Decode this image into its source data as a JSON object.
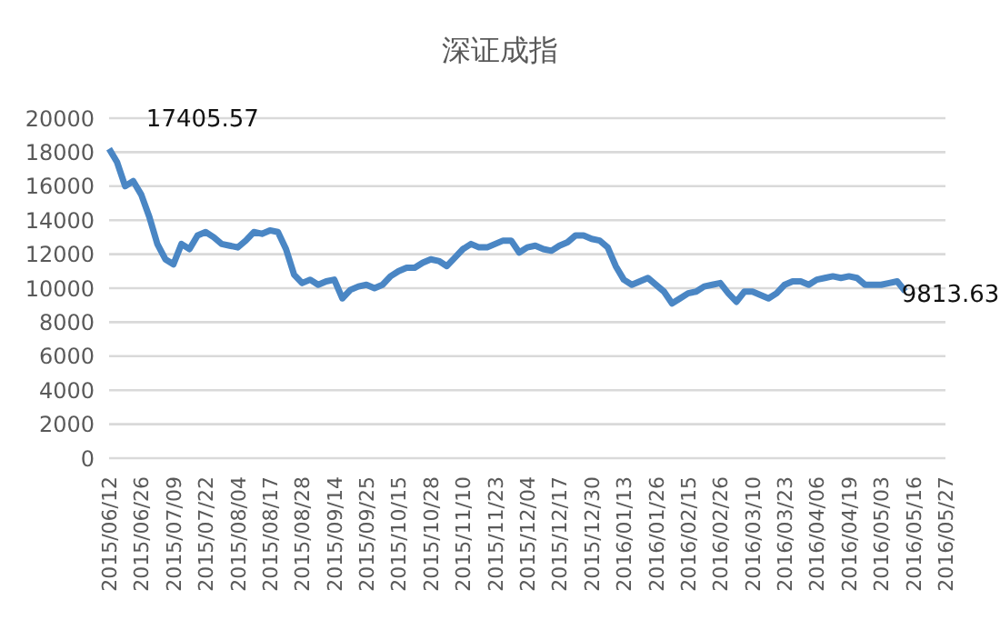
{
  "chart_data": {
    "type": "line",
    "title": "深证成指",
    "categories": [
      "2015/06/12",
      null,
      null,
      null,
      "2015/06/26",
      null,
      null,
      null,
      "2015/07/09",
      null,
      null,
      null,
      "2015/07/22",
      null,
      null,
      null,
      "2015/08/04",
      null,
      null,
      null,
      "2015/08/17",
      null,
      null,
      null,
      "2015/08/28",
      null,
      null,
      null,
      "2015/09/14",
      null,
      null,
      null,
      "2015/09/25",
      null,
      null,
      null,
      "2015/10/15",
      null,
      null,
      null,
      "2015/10/28",
      null,
      null,
      null,
      "2015/11/10",
      null,
      null,
      null,
      "2015/11/23",
      null,
      null,
      null,
      "2015/12/04",
      null,
      null,
      null,
      "2015/12/17",
      null,
      null,
      null,
      "2015/12/30",
      null,
      null,
      null,
      "2016/01/13",
      null,
      null,
      null,
      "2016/01/26",
      null,
      null,
      null,
      "2016/02/15",
      null,
      null,
      null,
      "2016/02/26",
      null,
      null,
      null,
      "2016/03/10",
      null,
      null,
      null,
      "2016/03/23",
      null,
      null,
      null,
      "2016/04/06",
      null,
      null,
      null,
      "2016/04/19",
      null,
      null,
      null,
      "2016/05/03",
      null,
      null,
      null,
      "2016/05/16",
      null,
      null,
      null,
      "2016/05/27"
    ],
    "series": [
      {
        "color": "#4a86c4",
        "values": [
          18200,
          17405.57,
          16000,
          16300,
          15500,
          14200,
          12600,
          11700,
          11400,
          12600,
          12300,
          13100,
          13300,
          13000,
          12600,
          12500,
          12400,
          12800,
          13300,
          13200,
          13400,
          13300,
          12300,
          10800,
          10300,
          10500,
          10200,
          10400,
          10500,
          9400,
          9900,
          10100,
          10200,
          10000,
          10200,
          10700,
          11000,
          11200,
          11200,
          11500,
          11700,
          11600,
          11300,
          11800,
          12300,
          12600,
          12400,
          12400,
          12600,
          12800,
          12800,
          12100,
          12400,
          12500,
          12300,
          12200,
          12500,
          12700,
          13100,
          13100,
          12900,
          12800,
          12400,
          11300,
          10500,
          10200,
          10400,
          10600,
          10200,
          9800,
          9100,
          9400,
          9700,
          9800,
          10100,
          10200,
          10300,
          9700,
          9200,
          9800,
          9800,
          9600,
          9400,
          9700,
          10200,
          10400,
          10400,
          10200,
          10500,
          10600,
          10700,
          10600,
          10700,
          10600,
          10200,
          10200,
          10200,
          10300,
          10400,
          9813.63,
          null,
          null,
          null,
          null,
          null
        ],
        "value_labels": [
          null,
          "17405.57",
          null,
          null,
          null,
          null,
          null,
          null,
          null,
          null,
          null,
          null,
          null,
          null,
          null,
          null,
          null,
          null,
          null,
          null,
          null,
          null,
          null,
          null,
          null,
          null,
          null,
          null,
          null,
          null,
          null,
          null,
          null,
          null,
          null,
          null,
          null,
          null,
          null,
          null,
          null,
          null,
          null,
          null,
          null,
          null,
          null,
          null,
          null,
          null,
          null,
          null,
          null,
          null,
          null,
          null,
          null,
          null,
          null,
          null,
          null,
          null,
          null,
          null,
          null,
          null,
          null,
          null,
          null,
          null,
          null,
          null,
          null,
          null,
          null,
          null,
          null,
          null,
          null,
          null,
          null,
          null,
          null,
          null,
          null,
          null,
          null,
          null,
          null,
          null,
          null,
          null,
          null,
          null,
          null,
          null,
          null,
          null,
          null,
          "9813.63",
          null,
          null,
          null,
          null,
          null
        ]
      }
    ],
    "ylim": [
      0,
      20000
    ],
    "yticks": [
      0,
      2000,
      4000,
      6000,
      8000,
      10000,
      12000,
      14000,
      16000,
      18000,
      20000
    ],
    "grid": "y",
    "marker": "none"
  }
}
